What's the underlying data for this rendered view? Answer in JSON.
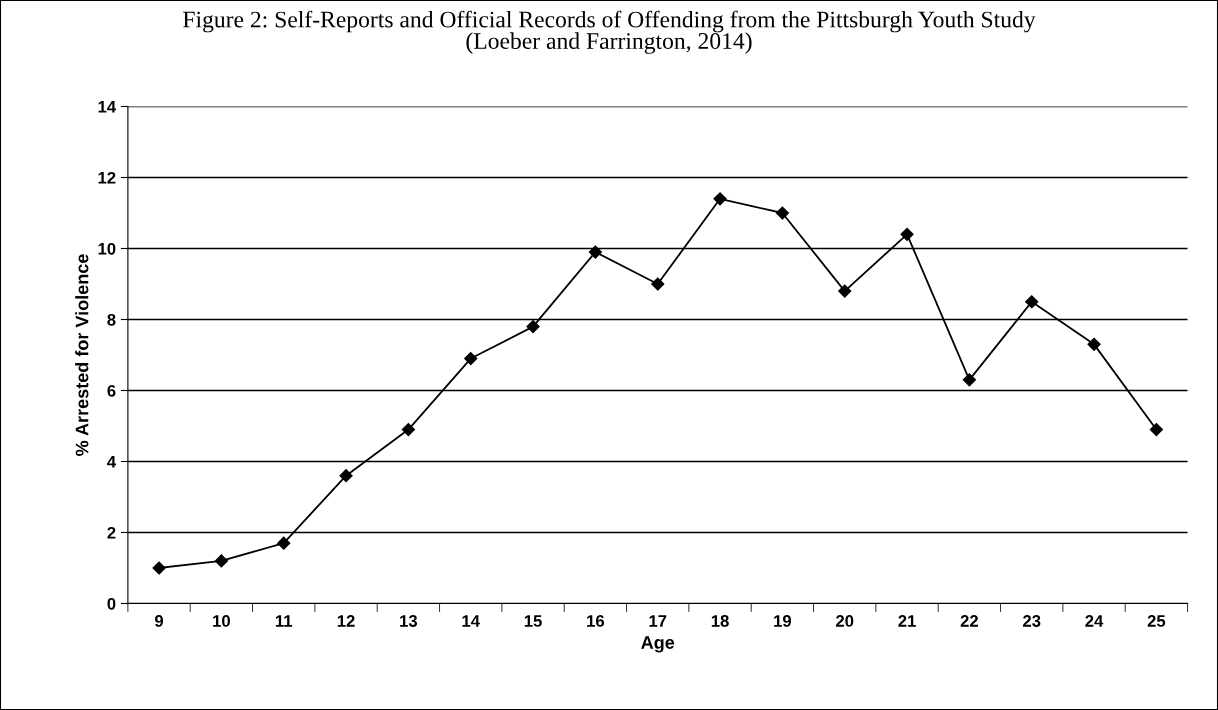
{
  "chart_data": {
    "type": "line",
    "title": "Figure 2: Self-Reports and Official Records of Offending from the Pittsburgh Youth Study\n(Loeber and Farrington, 2014)",
    "xlabel": "Age",
    "ylabel": "% Arrested for Violence",
    "categories": [
      "9",
      "10",
      "11",
      "12",
      "13",
      "14",
      "15",
      "16",
      "17",
      "18",
      "19",
      "20",
      "21",
      "22",
      "23",
      "24",
      "25"
    ],
    "series": [
      {
        "color": "#000000",
        "values": [
          1.0,
          1.2,
          1.7,
          3.6,
          4.9,
          6.9,
          7.8,
          9.9,
          9.0,
          11.4,
          11.0,
          8.8,
          10.4,
          6.3,
          8.5,
          7.3,
          4.9
        ]
      }
    ],
    "ylim": [
      0,
      14
    ],
    "yticks": [
      0,
      2,
      4,
      6,
      8,
      10,
      12,
      14
    ],
    "grid": "y",
    "marker": "diamond",
    "line_style": "solid"
  }
}
